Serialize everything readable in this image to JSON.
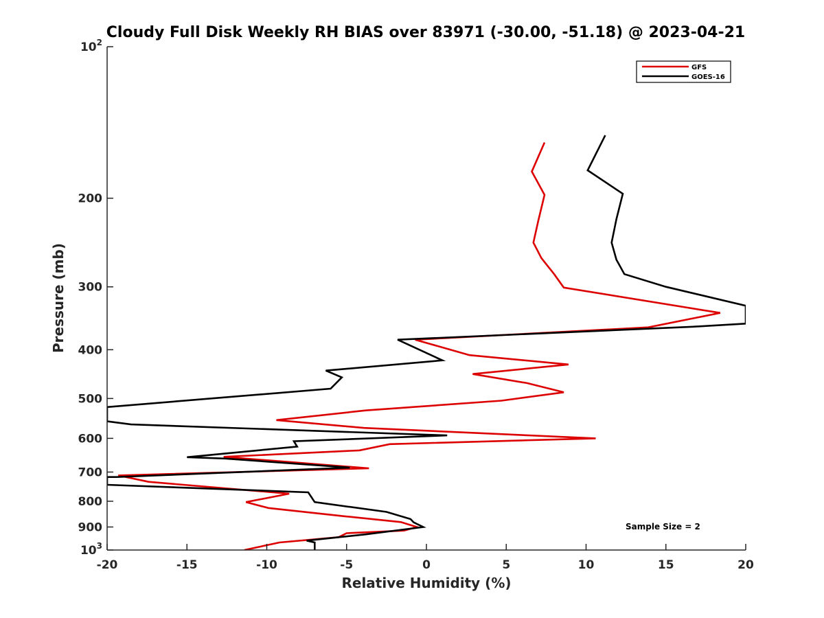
{
  "chart_data": {
    "type": "line",
    "title": "Cloudy Full Disk Weekly RH BIAS over 83971 (-30.00, -51.18) @ 2023-04-21",
    "xlabel": "Relative Humidity (%)",
    "ylabel": "Pressure (mb)",
    "xlim": [
      -20,
      20
    ],
    "ylim": [
      100,
      1000
    ],
    "y_scale": "log",
    "y_reversed": true,
    "x_ticks": [
      "-20",
      "-15",
      "-10",
      "-5",
      "0",
      "5",
      "10",
      "15",
      "20"
    ],
    "y_ticks": [
      {
        "value": 100,
        "base": "10",
        "exp": "2"
      },
      {
        "value": 200,
        "label": "200"
      },
      {
        "value": 300,
        "label": "300"
      },
      {
        "value": 400,
        "label": "400"
      },
      {
        "value": 500,
        "label": "500"
      },
      {
        "value": 600,
        "label": "600"
      },
      {
        "value": 700,
        "label": "700"
      },
      {
        "value": 800,
        "label": "800"
      },
      {
        "value": 900,
        "label": "900"
      },
      {
        "value": 1000,
        "base": "10",
        "exp": "3"
      }
    ],
    "legend": {
      "placement": "top-right"
    },
    "annotation": "Sample Size = 2",
    "grid": false,
    "series": [
      {
        "name": "GFS",
        "color": "#dd0000",
        "points": [
          [
            7.4,
            155
          ],
          [
            6.6,
            177
          ],
          [
            7.4,
            197
          ],
          [
            7.0,
            222
          ],
          [
            6.7,
            245
          ],
          [
            7.2,
            263
          ],
          [
            8.0,
            283
          ],
          [
            8.6,
            301
          ],
          [
            18.4,
            338
          ],
          [
            13.9,
            361
          ],
          [
            -0.7,
            382
          ],
          [
            2.7,
            410
          ],
          [
            8.9,
            428
          ],
          [
            2.9,
            447
          ],
          [
            6.3,
            466
          ],
          [
            8.6,
            486
          ],
          [
            4.7,
            505
          ],
          [
            -3.8,
            528
          ],
          [
            -9.4,
            552
          ],
          [
            -3.9,
            572
          ],
          [
            10.6,
            600
          ],
          [
            -2.3,
            616
          ],
          [
            -4.2,
            634
          ],
          [
            -12.7,
            653
          ],
          [
            -9.0,
            667
          ],
          [
            -3.6,
            688
          ],
          [
            -19.3,
            711
          ],
          [
            -17.4,
            732
          ],
          [
            -8.6,
            773
          ],
          [
            -11.3,
            803
          ],
          [
            -9.9,
            825
          ],
          [
            -5.1,
            857
          ],
          [
            -1.6,
            880
          ],
          [
            -0.6,
            900
          ],
          [
            -1.4,
            915
          ],
          [
            -5.0,
            926
          ],
          [
            -5.5,
            943
          ],
          [
            -9.2,
            966
          ],
          [
            -11.4,
            1000
          ]
        ]
      },
      {
        "name": "GOES-16",
        "color": "#000000",
        "points": [
          [
            11.2,
            150
          ],
          [
            10.1,
            176
          ],
          [
            12.3,
            196
          ],
          [
            11.9,
            220
          ],
          [
            11.6,
            245
          ],
          [
            11.9,
            265
          ],
          [
            12.4,
            283
          ],
          [
            15.0,
            300
          ],
          [
            20.0,
            327
          ],
          [
            20.0,
            355
          ],
          [
            16.7,
            360
          ],
          [
            -1.8,
            382
          ],
          [
            1.0,
            420
          ],
          [
            -6.3,
            440
          ],
          [
            -5.3,
            454
          ],
          [
            -6.0,
            478
          ],
          [
            -20.0,
            520
          ],
          [
            -20.0,
            555
          ],
          [
            -18.5,
            563
          ],
          [
            1.3,
            592
          ],
          [
            -8.3,
            608
          ],
          [
            -8.1,
            623
          ],
          [
            -15.0,
            654
          ],
          [
            -12.6,
            658
          ],
          [
            -4.8,
            686
          ],
          [
            -19.4,
            716
          ],
          [
            -20.0,
            716
          ],
          [
            -20.0,
            742
          ],
          [
            -7.4,
            768
          ],
          [
            -7.0,
            803
          ],
          [
            -2.5,
            840
          ],
          [
            -1.0,
            868
          ],
          [
            -0.8,
            881
          ],
          [
            -0.2,
            900
          ],
          [
            -3.8,
            931
          ],
          [
            -7.5,
            958
          ],
          [
            -7.0,
            966
          ],
          [
            -7.0,
            1000
          ]
        ]
      }
    ]
  }
}
